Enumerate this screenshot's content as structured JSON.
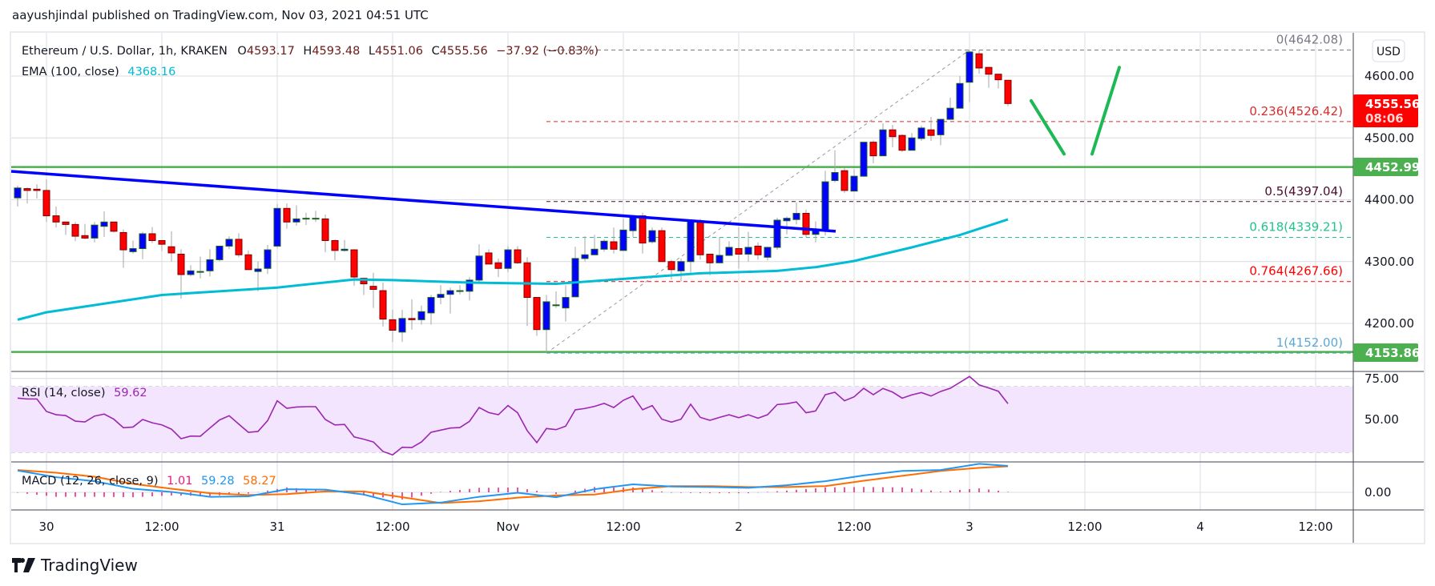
{
  "header": {
    "published": "aayushjindal published on TradingView.com, Nov 03, 2021 04:51 UTC"
  },
  "footer": {
    "logo_text": "TradingView"
  },
  "legend": {
    "symbol": "Ethereum / U.S. Dollar, 1h, KRAKEN",
    "o_label": "O",
    "o": "4593.17",
    "h_label": "H",
    "h": "4593.48",
    "l_label": "L",
    "l": "4551.06",
    "c_label": "C",
    "c": "4555.56",
    "change": "−37.92 (−0.83%)",
    "ema_label": "EMA (100, close)",
    "ema_value": "4368.16",
    "rsi_label": "RSI (14, close)",
    "rsi_value": "59.62",
    "macd_label": "MACD (12, 26, close, 9)",
    "macd_hist": "1.01",
    "macd_value": "59.28",
    "macd_signal": "58.27"
  },
  "price_axis": {
    "currency_button": "USD",
    "ticks": [
      "4600.00",
      "4500.00",
      "4400.00",
      "4300.00",
      "4200.00"
    ],
    "last_price": "4555.56",
    "countdown": "08:06",
    "level_labels": [
      "4452.99",
      "4153.86"
    ]
  },
  "rsi_axis": {
    "ticks": [
      "75.00",
      "50.00"
    ]
  },
  "macd_axis": {
    "ticks": [
      "0.00"
    ]
  },
  "time_axis": [
    {
      "label": "30",
      "t": "2021-10-30 00:00"
    },
    {
      "label": "12:00",
      "t": "2021-10-30 12:00"
    },
    {
      "label": "31",
      "t": "2021-10-31 00:00"
    },
    {
      "label": "12:00",
      "t": "2021-10-31 12:00"
    },
    {
      "label": "Nov",
      "t": "2021-11-01 00:00"
    },
    {
      "label": "12:00",
      "t": "2021-11-01 12:00"
    },
    {
      "label": "2",
      "t": "2021-11-02 00:00"
    },
    {
      "label": "12:00",
      "t": "2021-11-02 12:00"
    },
    {
      "label": "3",
      "t": "2021-11-03 00:00"
    },
    {
      "label": "12:00",
      "t": "2021-11-03 12:00"
    },
    {
      "label": "4",
      "t": "2021-11-04 00:00"
    },
    {
      "label": "12:00",
      "t": "2021-11-04 12:00"
    }
  ],
  "colors": {
    "up": "#0000ff",
    "up_border": "#1b5e20",
    "down": "#ff0000",
    "down_border": "#7f0000",
    "wick": "#a6a6a6",
    "ema": "#00bcd4",
    "trendline": "#0000ff",
    "support": "#4caf50",
    "projection": "#1db954",
    "rsi": "#9c27b0",
    "rsi_band": "#f3e5fd",
    "macd": "#2196f3",
    "signal": "#ff6d00",
    "hist": "#f0177b",
    "ohlc_text": "#6b1a1a"
  },
  "chart_data": {
    "type": "candlestick",
    "interval": "1h",
    "ylim": [
      4110,
      4680
    ],
    "grid": true,
    "candles_ohlc": [
      [
        4403,
        4423,
        4389,
        4419
      ],
      [
        4418,
        4420,
        4394,
        4415
      ],
      [
        4417,
        4425,
        4402,
        4415
      ],
      [
        4415,
        4433,
        4364,
        4374
      ],
      [
        4374,
        4389,
        4355,
        4364
      ],
      [
        4364,
        4364,
        4343,
        4360
      ],
      [
        4360,
        4364,
        4333,
        4341
      ],
      [
        4342,
        4361,
        4336,
        4338
      ],
      [
        4338,
        4364,
        4331,
        4359
      ],
      [
        4357,
        4381,
        4340,
        4364
      ],
      [
        4364,
        4364,
        4347,
        4349
      ],
      [
        4347,
        4352,
        4290,
        4319
      ],
      [
        4316,
        4334,
        4313,
        4321
      ],
      [
        4321,
        4348,
        4304,
        4345
      ],
      [
        4345,
        4356,
        4330,
        4334
      ],
      [
        4334,
        4334,
        4317,
        4328
      ],
      [
        4324,
        4349,
        4300,
        4314
      ],
      [
        4312,
        4320,
        4240,
        4279
      ],
      [
        4279,
        4294,
        4276,
        4285
      ],
      [
        4284,
        4308,
        4273,
        4284
      ],
      [
        4285,
        4320,
        4276,
        4303
      ],
      [
        4303,
        4325,
        4300,
        4325
      ],
      [
        4325,
        4341,
        4320,
        4336
      ],
      [
        4336,
        4346,
        4307,
        4311
      ],
      [
        4311,
        4318,
        4287,
        4287
      ],
      [
        4284,
        4300,
        4252,
        4288
      ],
      [
        4289,
        4327,
        4280,
        4319
      ],
      [
        4325,
        4393,
        4322,
        4386
      ],
      [
        4386,
        4394,
        4353,
        4364
      ],
      [
        4364,
        4391,
        4358,
        4369
      ],
      [
        4369,
        4379,
        4359,
        4370
      ],
      [
        4370,
        4382,
        4364,
        4370
      ],
      [
        4369,
        4376,
        4315,
        4334
      ],
      [
        4334,
        4336,
        4302,
        4318
      ],
      [
        4318,
        4335,
        4316,
        4320
      ],
      [
        4319,
        4320,
        4261,
        4275
      ],
      [
        4273,
        4274,
        4246,
        4264
      ],
      [
        4260,
        4282,
        4225,
        4255
      ],
      [
        4253,
        4266,
        4195,
        4207
      ],
      [
        4206,
        4222,
        4170,
        4189
      ],
      [
        4186,
        4222,
        4170,
        4208
      ],
      [
        4208,
        4239,
        4190,
        4206
      ],
      [
        4206,
        4229,
        4198,
        4219
      ],
      [
        4217,
        4246,
        4198,
        4242
      ],
      [
        4242,
        4262,
        4231,
        4247
      ],
      [
        4247,
        4258,
        4216,
        4253
      ],
      [
        4253,
        4262,
        4247,
        4253
      ],
      [
        4252,
        4275,
        4237,
        4270
      ],
      [
        4270,
        4328,
        4266,
        4309
      ],
      [
        4314,
        4320,
        4296,
        4296
      ],
      [
        4298,
        4305,
        4275,
        4289
      ],
      [
        4289,
        4325,
        4283,
        4319
      ],
      [
        4319,
        4325,
        4296,
        4298
      ],
      [
        4298,
        4307,
        4196,
        4242
      ],
      [
        4242,
        4242,
        4180,
        4190
      ],
      [
        4190,
        4246,
        4152,
        4235
      ],
      [
        4230,
        4252,
        4225,
        4230
      ],
      [
        4225,
        4262,
        4203,
        4242
      ],
      [
        4243,
        4324,
        4243,
        4305
      ],
      [
        4305,
        4341,
        4300,
        4311
      ],
      [
        4311,
        4343,
        4311,
        4320
      ],
      [
        4320,
        4336,
        4316,
        4333
      ],
      [
        4332,
        4355,
        4313,
        4320
      ],
      [
        4318,
        4369,
        4318,
        4351
      ],
      [
        4350,
        4374,
        4340,
        4374
      ],
      [
        4374,
        4379,
        4313,
        4330
      ],
      [
        4332,
        4355,
        4329,
        4350
      ],
      [
        4350,
        4355,
        4300,
        4300
      ],
      [
        4300,
        4303,
        4271,
        4287
      ],
      [
        4285,
        4305,
        4268,
        4300
      ],
      [
        4300,
        4367,
        4282,
        4367
      ],
      [
        4364,
        4369,
        4303,
        4311
      ],
      [
        4312,
        4312,
        4278,
        4298
      ],
      [
        4298,
        4340,
        4297,
        4310
      ],
      [
        4310,
        4333,
        4310,
        4323
      ],
      [
        4321,
        4356,
        4289,
        4312
      ],
      [
        4312,
        4348,
        4300,
        4323
      ],
      [
        4325,
        4331,
        4303,
        4311
      ],
      [
        4307,
        4324,
        4302,
        4323
      ],
      [
        4323,
        4371,
        4319,
        4367
      ],
      [
        4366,
        4373,
        4344,
        4370
      ],
      [
        4368,
        4396,
        4360,
        4378
      ],
      [
        4378,
        4384,
        4339,
        4344
      ],
      [
        4344,
        4365,
        4331,
        4351
      ],
      [
        4351,
        4447,
        4342,
        4429
      ],
      [
        4431,
        4480,
        4428,
        4444
      ],
      [
        4447,
        4451,
        4411,
        4415
      ],
      [
        4414,
        4449,
        4414,
        4438
      ],
      [
        4438,
        4493,
        4438,
        4493
      ],
      [
        4493,
        4496,
        4459,
        4471
      ],
      [
        4471,
        4524,
        4471,
        4513
      ],
      [
        4513,
        4521,
        4485,
        4502
      ],
      [
        4504,
        4506,
        4477,
        4480
      ],
      [
        4480,
        4508,
        4480,
        4500
      ],
      [
        4499,
        4520,
        4495,
        4516
      ],
      [
        4513,
        4534,
        4495,
        4504
      ],
      [
        4505,
        4530,
        4488,
        4530
      ],
      [
        4530,
        4565,
        4530,
        4548
      ],
      [
        4548,
        4600,
        4548,
        4588
      ],
      [
        4590,
        4642.08,
        4558,
        4639
      ],
      [
        4636,
        4642,
        4604,
        4613
      ],
      [
        4614,
        4614,
        4581,
        4603
      ],
      [
        4603,
        4603,
        4580,
        4594
      ],
      [
        4593.17,
        4593.48,
        4551.06,
        4555.56
      ]
    ],
    "ema100": [
      [
        "2021-10-29 21:00",
        4206
      ],
      [
        "2021-10-30 00:00",
        4218
      ],
      [
        "2021-10-30 12:00",
        4246
      ],
      [
        "2021-10-31 00:00",
        4258
      ],
      [
        "2021-10-31 08:00",
        4271
      ],
      [
        "2021-10-31 12:00",
        4270
      ],
      [
        "2021-10-31 20:00",
        4266
      ],
      [
        "2021-11-01 05:00",
        4264
      ],
      [
        "2021-11-01 12:00",
        4272
      ],
      [
        "2021-11-01 20:00",
        4281
      ],
      [
        "2021-11-02 04:00",
        4285
      ],
      [
        "2021-11-02 08:00",
        4291
      ],
      [
        "2021-11-02 12:00",
        4301
      ],
      [
        "2021-11-02 18:00",
        4323
      ],
      [
        "2021-11-02 23:00",
        4343
      ],
      [
        "2021-11-03 04:00",
        4368.16
      ]
    ],
    "trendline": [
      [
        "2021-10-29 20:20",
        4446
      ],
      [
        "2021-11-02 10:05",
        4349
      ]
    ],
    "horizontal_levels": [
      4452.99,
      4153.86
    ],
    "fibonacci": {
      "from": [
        "2021-11-01 04:00",
        4152.0
      ],
      "to": [
        "2021-11-03 00:00",
        4642.08
      ],
      "levels": [
        {
          "label": "0(4642.08)",
          "price": 4642.08,
          "color": "#787b86"
        },
        {
          "label": "0.236(4526.42)",
          "price": 4526.42,
          "color": "#d32f2f"
        },
        {
          "label": "0.5(4397.04)",
          "price": 4397.04,
          "color": "#4a0d2e"
        },
        {
          "label": "0.618(4339.21)",
          "price": 4339.21,
          "color": "#22c38e"
        },
        {
          "label": "0.764(4267.66)",
          "price": 4267.66,
          "color": "#ff0000"
        },
        {
          "label": "1(4152.00)",
          "price": 4152.0,
          "color": "#5ba8d6"
        }
      ]
    },
    "projection_lines": [
      [
        [
          "2021-11-03 06:25",
          4560
        ],
        [
          "2021-11-03 09:50",
          4474
        ]
      ],
      [
        [
          "2021-11-03 12:45",
          4474
        ],
        [
          "2021-11-03 15:35",
          4614
        ]
      ]
    ],
    "rsi": {
      "ylim": [
        20,
        80
      ],
      "band": [
        30,
        70
      ],
      "values": [
        63,
        62.5,
        62.5,
        54.9,
        52.9,
        52.4,
        49,
        48.5,
        52.1,
        53.3,
        50.2,
        45,
        45.4,
        50,
        48,
        46.7,
        44.1,
        38.3,
        39.9,
        39.8,
        44.8,
        49.7,
        52.3,
        47.2,
        42.2,
        42.7,
        49.3,
        61.4,
        56.8,
        57.6,
        57.8,
        57.8,
        50,
        46.7,
        47,
        39.4,
        38,
        36.3,
        30.5,
        28.4,
        33.1,
        32.9,
        36.3,
        42.2,
        43.5,
        44.8,
        45.1,
        48.9,
        57.3,
        54.2,
        52.9,
        58.5,
        54.1,
        43.2,
        35.9,
        44.5,
        43.8,
        45.9,
        55.9,
        56.7,
        58,
        59.8,
        57.3,
        61.7,
        64.3,
        55.9,
        58.5,
        50.2,
        48.4,
        50.2,
        59.3,
        51.3,
        49.5,
        51.3,
        52.9,
        51.1,
        52.9,
        50.8,
        52.9,
        59.1,
        59.6,
        60.7,
        54.1,
        55.2,
        65.1,
        66.6,
        61.4,
        63.8,
        69,
        65.1,
        68.9,
        66.7,
        63,
        65,
        66.4,
        64.3,
        67.1,
        69,
        72.6,
        76.2,
        71.1,
        69.2,
        67.2,
        59.62
      ]
    },
    "macd": {
      "macd": [
        [
          "2021-10-29 21:00",
          49
        ],
        [
          "2021-10-30 01:00",
          34
        ],
        [
          "2021-10-30 05:00",
          25
        ],
        [
          "2021-10-30 09:00",
          8
        ],
        [
          "2021-10-30 13:00",
          1
        ],
        [
          "2021-10-30 17:00",
          -10
        ],
        [
          "2021-10-30 21:00",
          -9
        ],
        [
          "2021-10-31 01:00",
          7
        ],
        [
          "2021-10-31 05:00",
          6
        ],
        [
          "2021-10-31 09:00",
          -5
        ],
        [
          "2021-10-31 13:00",
          -27
        ],
        [
          "2021-10-31 17:00",
          -23
        ],
        [
          "2021-10-31 21:00",
          -10
        ],
        [
          "2021-11-01 01:00",
          -1
        ],
        [
          "2021-11-01 05:00",
          -11
        ],
        [
          "2021-11-01 09:00",
          7
        ],
        [
          "2021-11-01 13:00",
          18
        ],
        [
          "2021-11-01 17:00",
          13
        ],
        [
          "2021-11-01 21:00",
          12
        ],
        [
          "2021-11-02 01:00",
          10
        ],
        [
          "2021-11-02 05:00",
          16
        ],
        [
          "2021-11-02 09:00",
          25
        ],
        [
          "2021-11-02 13:00",
          38
        ],
        [
          "2021-11-02 17:00",
          48
        ],
        [
          "2021-11-02 21:00",
          50
        ],
        [
          "2021-11-03 01:00",
          64
        ],
        [
          "2021-11-03 04:00",
          59.28
        ]
      ],
      "signal": [
        [
          "2021-10-29 21:00",
          50
        ],
        [
          "2021-10-30 01:00",
          44
        ],
        [
          "2021-10-30 05:00",
          35
        ],
        [
          "2021-10-30 09:00",
          19
        ],
        [
          "2021-10-30 13:00",
          8
        ],
        [
          "2021-10-30 17:00",
          -2
        ],
        [
          "2021-10-30 21:00",
          -6
        ],
        [
          "2021-10-31 01:00",
          -4
        ],
        [
          "2021-10-31 05:00",
          2
        ],
        [
          "2021-10-31 09:00",
          2
        ],
        [
          "2021-10-31 13:00",
          -11
        ],
        [
          "2021-10-31 17:00",
          -24
        ],
        [
          "2021-10-31 21:00",
          -20
        ],
        [
          "2021-11-01 01:00",
          -12
        ],
        [
          "2021-11-01 05:00",
          -7
        ],
        [
          "2021-11-01 09:00",
          -5
        ],
        [
          "2021-11-01 13:00",
          7
        ],
        [
          "2021-11-01 17:00",
          14
        ],
        [
          "2021-11-01 21:00",
          14
        ],
        [
          "2021-11-02 01:00",
          12
        ],
        [
          "2021-11-02 05:00",
          12
        ],
        [
          "2021-11-02 09:00",
          14
        ],
        [
          "2021-11-02 13:00",
          26
        ],
        [
          "2021-11-02 17:00",
          37
        ],
        [
          "2021-11-02 21:00",
          48
        ],
        [
          "2021-11-03 01:00",
          55
        ],
        [
          "2021-11-03 04:00",
          58.27
        ]
      ]
    }
  }
}
